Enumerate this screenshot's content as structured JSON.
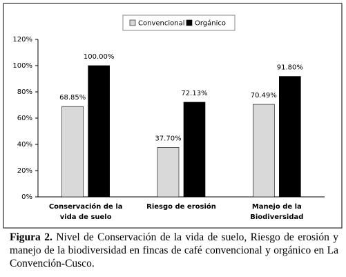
{
  "chart_data": {
    "type": "bar",
    "categories": [
      "Conservación de la vida de suelo",
      "Riesgo de erosión",
      "Manejo de la Biodiversidad"
    ],
    "series": [
      {
        "name": "Convencional",
        "color": "#d9d9d9",
        "values": [
          68.85,
          37.7,
          70.49
        ],
        "value_labels": [
          "68.85%",
          "37.70%",
          "70.49%"
        ]
      },
      {
        "name": "Orgánico",
        "color": "#000000",
        "values": [
          100,
          72.13,
          91.8
        ],
        "value_labels": [
          "100.00%",
          "72.13%",
          "91.80%"
        ]
      }
    ],
    "ylim": [
      0,
      120
    ],
    "yticks": [
      {
        "value": 0,
        "label": "0%"
      },
      {
        "value": 20,
        "label": "20%"
      },
      {
        "value": 40,
        "label": "40%"
      },
      {
        "value": 60,
        "label": "60%"
      },
      {
        "value": 80,
        "label": "80%"
      },
      {
        "value": 100,
        "label": "100%"
      },
      {
        "value": 120,
        "label": "120%"
      }
    ],
    "legend": "top"
  },
  "caption": {
    "label": "Figura 2.",
    "text": "Nivel de Conservación de la vida de suelo, Riesgo de erosión y manejo de la biodiversidad en fincas de café convencional y orgánico en La Convención-Cusco."
  }
}
